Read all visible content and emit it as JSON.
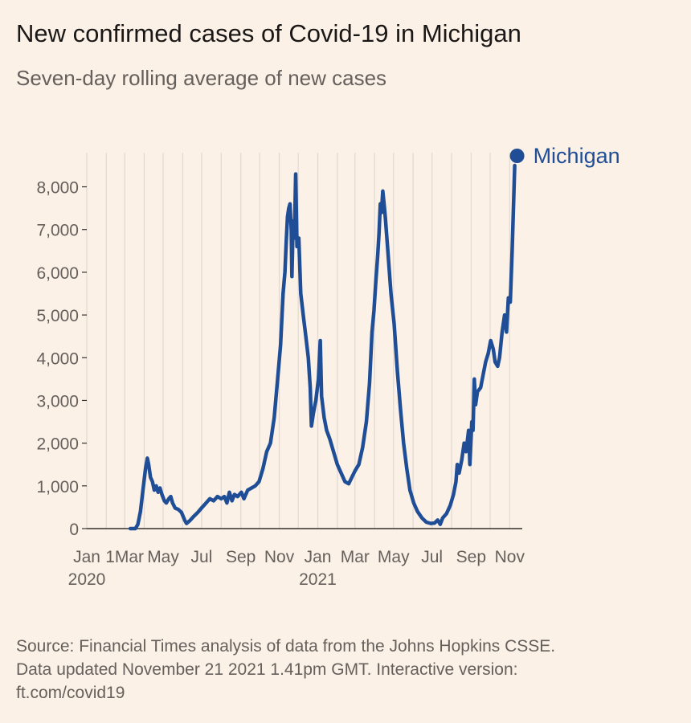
{
  "header": {
    "title": "New confirmed cases of Covid-19 in Michigan",
    "subtitle": "Seven-day rolling average of new cases"
  },
  "footer": {
    "line1": "Source: Financial Times analysis of data from the Johns Hopkins CSSE.",
    "line2": "Data updated November 21 2021 1.41pm GMT. Interactive version:",
    "line3": "ft.com/covid19"
  },
  "colors": {
    "background": "#fcf1e7",
    "line": "#1f4e96",
    "grid": "#e0d9d2",
    "axis": "#33302e",
    "text": "#66605c"
  },
  "chart_data": {
    "type": "line",
    "title": "New confirmed cases of Covid-19 in Michigan",
    "subtitle": "Seven-day rolling average of new cases",
    "xlabel": "",
    "ylabel": "",
    "ylim": [
      0,
      8800
    ],
    "xlim": [
      "2020-01-01",
      "2021-11-21"
    ],
    "grid": true,
    "yticks": [
      0,
      1000,
      2000,
      3000,
      4000,
      5000,
      6000,
      7000,
      8000
    ],
    "ytick_labels": [
      "0",
      "1,000",
      "2,000",
      "3,000",
      "4,000",
      "5,000",
      "6,000",
      "7,000",
      "8,000"
    ],
    "xticks": [
      {
        "date": "2020-01-01",
        "label": "Jan",
        "year": "2020"
      },
      {
        "date": "2020-03-01",
        "label": "1Mar",
        "year": ""
      },
      {
        "date": "2020-05-01",
        "label": "May",
        "year": ""
      },
      {
        "date": "2020-07-01",
        "label": "Jul",
        "year": ""
      },
      {
        "date": "2020-09-01",
        "label": "Sep",
        "year": ""
      },
      {
        "date": "2020-11-01",
        "label": "Nov",
        "year": ""
      },
      {
        "date": "2021-01-01",
        "label": "Jan",
        "year": "2021"
      },
      {
        "date": "2021-03-01",
        "label": "Mar",
        "year": ""
      },
      {
        "date": "2021-05-01",
        "label": "May",
        "year": ""
      },
      {
        "date": "2021-07-01",
        "label": "Jul",
        "year": ""
      },
      {
        "date": "2021-09-01",
        "label": "Sep",
        "year": ""
      },
      {
        "date": "2021-11-01",
        "label": "Nov",
        "year": ""
      }
    ],
    "series": [
      {
        "name": "Michigan",
        "color": "#1f4e96",
        "points": [
          [
            "2020-03-10",
            0
          ],
          [
            "2020-03-18",
            0
          ],
          [
            "2020-03-22",
            100
          ],
          [
            "2020-03-26",
            400
          ],
          [
            "2020-03-30",
            900
          ],
          [
            "2020-04-03",
            1400
          ],
          [
            "2020-04-06",
            1650
          ],
          [
            "2020-04-08",
            1500
          ],
          [
            "2020-04-11",
            1200
          ],
          [
            "2020-04-14",
            1100
          ],
          [
            "2020-04-17",
            900
          ],
          [
            "2020-04-20",
            1000
          ],
          [
            "2020-04-23",
            850
          ],
          [
            "2020-04-26",
            950
          ],
          [
            "2020-04-29",
            800
          ],
          [
            "2020-05-03",
            650
          ],
          [
            "2020-05-06",
            600
          ],
          [
            "2020-05-10",
            700
          ],
          [
            "2020-05-13",
            750
          ],
          [
            "2020-05-16",
            600
          ],
          [
            "2020-05-20",
            480
          ],
          [
            "2020-05-25",
            450
          ],
          [
            "2020-05-30",
            380
          ],
          [
            "2020-06-04",
            200
          ],
          [
            "2020-06-07",
            120
          ],
          [
            "2020-06-12",
            180
          ],
          [
            "2020-06-18",
            280
          ],
          [
            "2020-06-25",
            380
          ],
          [
            "2020-07-02",
            500
          ],
          [
            "2020-07-08",
            600
          ],
          [
            "2020-07-14",
            700
          ],
          [
            "2020-07-20",
            650
          ],
          [
            "2020-07-26",
            750
          ],
          [
            "2020-08-01",
            700
          ],
          [
            "2020-08-06",
            750
          ],
          [
            "2020-08-10",
            600
          ],
          [
            "2020-08-14",
            850
          ],
          [
            "2020-08-18",
            650
          ],
          [
            "2020-08-22",
            800
          ],
          [
            "2020-08-27",
            750
          ],
          [
            "2020-09-02",
            850
          ],
          [
            "2020-09-06",
            700
          ],
          [
            "2020-09-12",
            900
          ],
          [
            "2020-09-18",
            950
          ],
          [
            "2020-09-24",
            1000
          ],
          [
            "2020-09-30",
            1100
          ],
          [
            "2020-10-06",
            1400
          ],
          [
            "2020-10-12",
            1800
          ],
          [
            "2020-10-18",
            2000
          ],
          [
            "2020-10-24",
            2600
          ],
          [
            "2020-10-30",
            3600
          ],
          [
            "2020-11-03",
            4300
          ],
          [
            "2020-11-07",
            5500
          ],
          [
            "2020-11-10",
            6000
          ],
          [
            "2020-11-12",
            6700
          ],
          [
            "2020-11-14",
            7300
          ],
          [
            "2020-11-16",
            7500
          ],
          [
            "2020-11-18",
            7600
          ],
          [
            "2020-11-20",
            7000
          ],
          [
            "2020-11-21",
            5900
          ],
          [
            "2020-11-23",
            7200
          ],
          [
            "2020-11-25",
            6800
          ],
          [
            "2020-11-27",
            8300
          ],
          [
            "2020-11-29",
            6600
          ],
          [
            "2020-12-02",
            6800
          ],
          [
            "2020-12-05",
            5500
          ],
          [
            "2020-12-09",
            5000
          ],
          [
            "2020-12-13",
            4500
          ],
          [
            "2020-12-17",
            4000
          ],
          [
            "2020-12-20",
            3300
          ],
          [
            "2020-12-22",
            2400
          ],
          [
            "2020-12-25",
            2700
          ],
          [
            "2020-12-29",
            3000
          ],
          [
            "2021-01-02",
            3500
          ],
          [
            "2021-01-05",
            4400
          ],
          [
            "2021-01-07",
            3100
          ],
          [
            "2021-01-11",
            2600
          ],
          [
            "2021-01-15",
            2300
          ],
          [
            "2021-01-20",
            2100
          ],
          [
            "2021-01-26",
            1800
          ],
          [
            "2021-02-01",
            1500
          ],
          [
            "2021-02-07",
            1300
          ],
          [
            "2021-02-13",
            1100
          ],
          [
            "2021-02-19",
            1050
          ],
          [
            "2021-02-24",
            1200
          ],
          [
            "2021-03-01",
            1350
          ],
          [
            "2021-03-07",
            1500
          ],
          [
            "2021-03-13",
            1900
          ],
          [
            "2021-03-19",
            2500
          ],
          [
            "2021-03-24",
            3400
          ],
          [
            "2021-03-28",
            4600
          ],
          [
            "2021-03-31",
            5100
          ],
          [
            "2021-04-03",
            5800
          ],
          [
            "2021-04-06",
            6400
          ],
          [
            "2021-04-08",
            6900
          ],
          [
            "2021-04-10",
            7600
          ],
          [
            "2021-04-12",
            7400
          ],
          [
            "2021-04-14",
            7900
          ],
          [
            "2021-04-16",
            7600
          ],
          [
            "2021-04-18",
            7300
          ],
          [
            "2021-04-22",
            6500
          ],
          [
            "2021-04-27",
            5500
          ],
          [
            "2021-05-02",
            4800
          ],
          [
            "2021-05-07",
            3700
          ],
          [
            "2021-05-12",
            2800
          ],
          [
            "2021-05-17",
            2000
          ],
          [
            "2021-05-22",
            1400
          ],
          [
            "2021-05-27",
            900
          ],
          [
            "2021-06-02",
            600
          ],
          [
            "2021-06-08",
            400
          ],
          [
            "2021-06-15",
            250
          ],
          [
            "2021-06-22",
            150
          ],
          [
            "2021-06-29",
            120
          ],
          [
            "2021-07-05",
            130
          ],
          [
            "2021-07-10",
            200
          ],
          [
            "2021-07-14",
            100
          ],
          [
            "2021-07-18",
            250
          ],
          [
            "2021-07-24",
            350
          ],
          [
            "2021-07-30",
            550
          ],
          [
            "2021-08-04",
            800
          ],
          [
            "2021-08-08",
            1100
          ],
          [
            "2021-08-10",
            1500
          ],
          [
            "2021-08-13",
            1300
          ],
          [
            "2021-08-17",
            1600
          ],
          [
            "2021-08-21",
            2000
          ],
          [
            "2021-08-24",
            1800
          ],
          [
            "2021-08-28",
            2300
          ],
          [
            "2021-08-30",
            1500
          ],
          [
            "2021-09-02",
            2500
          ],
          [
            "2021-09-04",
            2300
          ],
          [
            "2021-09-06",
            3500
          ],
          [
            "2021-09-08",
            2900
          ],
          [
            "2021-09-11",
            3200
          ],
          [
            "2021-09-16",
            3300
          ],
          [
            "2021-09-20",
            3600
          ],
          [
            "2021-09-24",
            3900
          ],
          [
            "2021-09-28",
            4100
          ],
          [
            "2021-10-02",
            4400
          ],
          [
            "2021-10-06",
            4200
          ],
          [
            "2021-10-09",
            3900
          ],
          [
            "2021-10-13",
            3800
          ],
          [
            "2021-10-16",
            4000
          ],
          [
            "2021-10-20",
            4600
          ],
          [
            "2021-10-24",
            5000
          ],
          [
            "2021-10-27",
            4600
          ],
          [
            "2021-10-30",
            5400
          ],
          [
            "2021-11-02",
            5300
          ],
          [
            "2021-11-05",
            6500
          ],
          [
            "2021-11-07",
            7500
          ],
          [
            "2021-11-09",
            8500
          ]
        ],
        "end_label": "Michigan"
      }
    ]
  }
}
